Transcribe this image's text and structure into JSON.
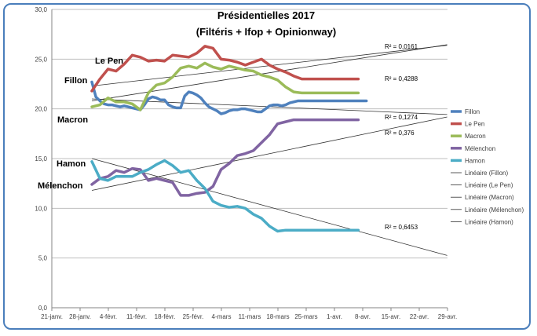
{
  "chart_data": {
    "type": "line",
    "title": "Présidentielles 2017",
    "subtitle": "(Filtéris + Ifop + Opinionway)",
    "ylim": [
      0,
      30
    ],
    "y_ticks": [
      "0,0",
      "5,0",
      "10,0",
      "15,0",
      "20,0",
      "25,0",
      "30,0"
    ],
    "x_ticks": [
      "21-janv.",
      "28-janv.",
      "4-févr.",
      "11-févr.",
      "18-févr.",
      "25-févr.",
      "4-mars",
      "11-mars",
      "18-mars",
      "25-mars",
      "1-avr.",
      "8-avr.",
      "15-avr.",
      "22-avr.",
      "29-avr."
    ],
    "grid": "horizontal",
    "legend_position": "right",
    "series": [
      {
        "name": "Fillon",
        "color": "#4f81bd",
        "x": [
          0,
          1,
          2,
          3,
          4,
          5,
          6,
          7,
          8,
          9,
          10,
          11,
          12,
          13,
          14,
          15,
          16,
          17,
          18,
          19,
          20,
          21,
          22,
          23,
          24,
          25,
          26,
          27,
          28,
          29,
          30,
          31,
          32,
          33,
          34,
          35,
          36,
          37,
          38,
          39,
          40,
          41,
          42,
          43,
          44,
          45,
          46,
          47,
          48,
          49,
          50,
          51,
          52,
          53,
          54,
          55,
          56,
          57,
          58,
          59,
          60,
          61,
          62,
          63,
          64,
          65,
          66,
          67,
          68
        ],
        "y": [
          22.7,
          21.2,
          20.8,
          20.5,
          20.4,
          20.4,
          20.3,
          20.2,
          20.3,
          20.2,
          20.1,
          20.0,
          19.9,
          20.4,
          21.0,
          21.2,
          21.1,
          20.9,
          20.9,
          20.4,
          20.2,
          20.1,
          20.1,
          21.3,
          21.7,
          21.6,
          21.4,
          21.1,
          20.6,
          20.2,
          20.0,
          19.8,
          19.5,
          19.6,
          19.8,
          19.9,
          19.9,
          20.0,
          20.0,
          19.9,
          19.8,
          19.7,
          19.7,
          20.0,
          20.3,
          20.4,
          20.4,
          20.3,
          20.4,
          20.6,
          20.7,
          20.8,
          20.8,
          20.8,
          20.8,
          20.8,
          20.8,
          20.8,
          20.8,
          20.8,
          20.8,
          20.8,
          20.8,
          20.8,
          20.8,
          20.8,
          20.8,
          20.8,
          20.8
        ]
      },
      {
        "name": "Le Pen",
        "color": "#c0504d",
        "x": [
          0,
          2,
          4,
          6,
          8,
          10,
          12,
          14,
          16,
          18,
          20,
          22,
          24,
          26,
          28,
          30,
          32,
          34,
          36,
          38,
          40,
          42,
          44,
          46,
          48,
          50,
          52,
          54,
          56,
          58,
          60,
          62,
          64,
          66
        ],
        "y": [
          21.8,
          23.0,
          24.0,
          23.8,
          24.5,
          25.4,
          25.2,
          24.8,
          24.9,
          24.8,
          25.4,
          25.3,
          25.2,
          25.6,
          26.3,
          26.1,
          25.0,
          24.9,
          24.7,
          24.4,
          24.7,
          25.0,
          24.4,
          24.0,
          23.7,
          23.3,
          23.0,
          23.0,
          23.0,
          23.0,
          23.0,
          23.0,
          23.0,
          23.0
        ]
      },
      {
        "name": "Macron",
        "color": "#9bbb59",
        "x": [
          0,
          2,
          4,
          6,
          8,
          10,
          12,
          14,
          16,
          18,
          20,
          22,
          24,
          26,
          28,
          30,
          32,
          34,
          36,
          38,
          40,
          42,
          44,
          46,
          48,
          50,
          52,
          54,
          56,
          58,
          60,
          62,
          64,
          66
        ],
        "y": [
          20.2,
          20.4,
          21.1,
          20.7,
          20.7,
          20.5,
          19.9,
          21.6,
          22.4,
          22.6,
          23.2,
          24.1,
          24.3,
          24.1,
          24.6,
          24.2,
          24.0,
          24.3,
          24.1,
          23.9,
          23.8,
          23.4,
          23.2,
          22.9,
          22.2,
          21.7,
          21.6,
          21.6,
          21.6,
          21.6,
          21.6,
          21.6,
          21.6,
          21.6
        ]
      },
      {
        "name": "Mélenchon",
        "color": "#8064a2",
        "x": [
          0,
          2,
          4,
          6,
          8,
          10,
          12,
          14,
          16,
          18,
          20,
          22,
          24,
          26,
          28,
          30,
          32,
          34,
          36,
          38,
          40,
          42,
          44,
          46,
          48,
          50,
          52,
          54,
          56,
          58,
          60,
          62,
          64,
          66
        ],
        "y": [
          12.4,
          13.0,
          13.2,
          13.8,
          13.6,
          14.0,
          13.9,
          12.8,
          13.0,
          12.8,
          12.6,
          11.3,
          11.3,
          11.5,
          11.6,
          12.2,
          13.9,
          14.5,
          15.3,
          15.5,
          15.8,
          16.6,
          17.4,
          18.5,
          18.7,
          18.9,
          18.9,
          18.9,
          18.9,
          18.9,
          18.9,
          18.9,
          18.9,
          18.9
        ]
      },
      {
        "name": "Hamon",
        "color": "#4bacc6",
        "x": [
          0,
          2,
          4,
          6,
          8,
          10,
          12,
          14,
          16,
          18,
          20,
          22,
          24,
          26,
          28,
          30,
          32,
          34,
          36,
          38,
          40,
          42,
          44,
          46,
          48,
          50,
          52,
          54,
          56,
          58,
          60,
          62,
          64,
          66
        ],
        "y": [
          14.7,
          13.0,
          12.8,
          13.2,
          13.2,
          13.2,
          13.6,
          13.9,
          14.4,
          14.8,
          14.3,
          13.6,
          13.8,
          12.8,
          12.0,
          10.7,
          10.3,
          10.1,
          10.2,
          10.0,
          9.4,
          9.0,
          8.2,
          7.7,
          7.8,
          7.8,
          7.8,
          7.8,
          7.8,
          7.8,
          7.8,
          7.8,
          7.8,
          7.8
        ]
      }
    ],
    "trendlines": [
      {
        "name": "Linéaire (Fillon)",
        "r2": "R² = 0,0161",
        "from": [
          0,
          21.0
        ],
        "to": [
          56,
          20.0
        ]
      },
      {
        "name": "Linéaire (Le Pen)",
        "r2": "R² = 0,4288",
        "from": [
          0,
          22.3
        ],
        "to": [
          56,
          24.9
        ]
      },
      {
        "name": "Linéaire (Macron)",
        "r2": "R² = 0,1274",
        "from": [
          0,
          20.8
        ],
        "to": [
          56,
          24.4
        ]
      },
      {
        "name": "Linéaire (Mélenchon)",
        "r2": "R² = 0,376",
        "from": [
          0,
          11.8
        ],
        "to": [
          56,
          16.5
        ]
      },
      {
        "name": "Linéaire (Hamon)",
        "r2": "R² = 0,6453",
        "from": [
          0,
          15.0
        ],
        "to": [
          56,
          8.8
        ]
      }
    ],
    "candidate_labels": [
      "Le Pen",
      "Fillon",
      "Macron",
      "Hamon",
      "Mélenchon"
    ]
  }
}
